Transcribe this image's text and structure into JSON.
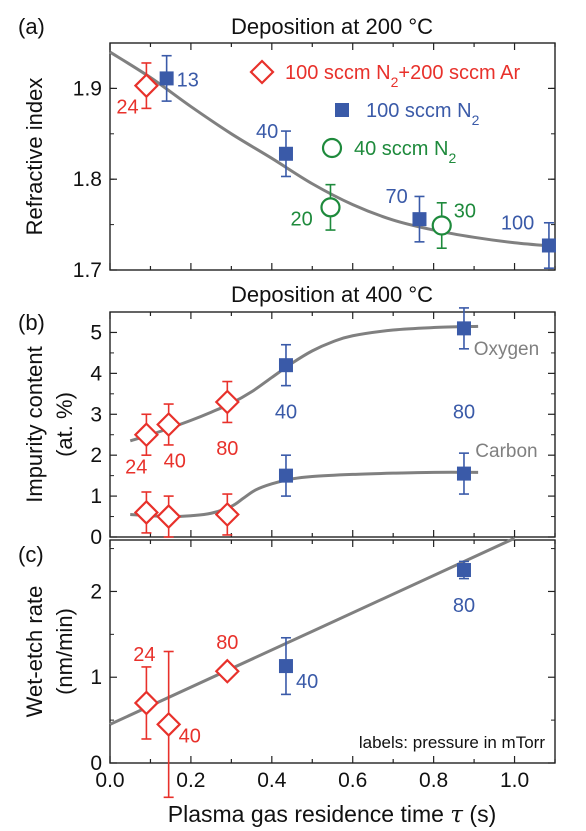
{
  "colors": {
    "red": "#e8312b",
    "blue": "#3a5aa8",
    "green": "#1e8a3c",
    "fit": "#808080",
    "axis": "#222222"
  },
  "chart_data": [
    {
      "panel": "(a)",
      "type": "scatter",
      "title": "Deposition at 200 °C",
      "xlabel": "",
      "ylabel": "Refractive index",
      "xlim": [
        0.0,
        1.1
      ],
      "ylim": [
        1.7,
        1.95
      ],
      "yticks": [
        1.7,
        1.8,
        1.9
      ],
      "series": [
        {
          "name": "100 sccm N2+200 sccm Ar",
          "marker": "diamond-open",
          "color": "red",
          "points": [
            {
              "x": 0.09,
              "y": 1.903,
              "err": 0.025,
              "label": "24"
            }
          ]
        },
        {
          "name": "100 sccm N2",
          "marker": "square-filled",
          "color": "blue",
          "points": [
            {
              "x": 0.14,
              "y": 1.911,
              "err": 0.025,
              "label": "13"
            },
            {
              "x": 0.435,
              "y": 1.828,
              "err": 0.025,
              "label": "40"
            },
            {
              "x": 0.765,
              "y": 1.756,
              "err": 0.025,
              "label": "70"
            },
            {
              "x": 1.085,
              "y": 1.727,
              "err": 0.025,
              "label": "100"
            }
          ]
        },
        {
          "name": "40 sccm N2",
          "marker": "circle-open",
          "color": "green",
          "points": [
            {
              "x": 0.545,
              "y": 1.769,
              "err": 0.025,
              "label": "20"
            },
            {
              "x": 0.82,
              "y": 1.749,
              "err": 0.025,
              "label": "30"
            }
          ]
        }
      ],
      "legend": {
        "placement": "top-right",
        "entries": [
          {
            "text": "100 sccm N",
            "sub": "2",
            "tail": "+200 sccm Ar",
            "color": "red",
            "marker": "diamond-open"
          },
          {
            "text": "100 sccm N",
            "sub": "2",
            "tail": "",
            "color": "blue",
            "marker": "square-filled"
          },
          {
            "text": "40 sccm N",
            "sub": "2",
            "tail": "",
            "color": "green",
            "marker": "circle-open"
          }
        ]
      },
      "fit_curve": {
        "x": [
          0.0,
          0.1,
          0.2,
          0.3,
          0.4,
          0.5,
          0.6,
          0.7,
          0.8,
          0.9,
          1.0,
          1.1
        ],
        "y": [
          1.94,
          1.912,
          1.88,
          1.85,
          1.823,
          1.795,
          1.772,
          1.755,
          1.744,
          1.736,
          1.73,
          1.726
        ]
      }
    },
    {
      "panel": "(b)",
      "type": "scatter",
      "title": "Deposition at 400 °C",
      "xlabel": "",
      "ylabel": "Impurity content",
      "ylabel2": "(at. %)",
      "xlim": [
        0.0,
        1.1
      ],
      "ylim": [
        0,
        5.5
      ],
      "yticks": [
        0,
        1,
        2,
        3,
        4,
        5
      ],
      "series": [
        {
          "name": "Oxygen",
          "points": [
            {
              "x": 0.09,
              "y": 2.5,
              "err": 0.5,
              "marker": "diamond-open",
              "color": "red"
            },
            {
              "x": 0.145,
              "y": 2.75,
              "err": 0.5,
              "marker": "diamond-open",
              "color": "red"
            },
            {
              "x": 0.29,
              "y": 3.3,
              "err": 0.5,
              "marker": "diamond-open",
              "color": "red"
            },
            {
              "x": 0.435,
              "y": 4.2,
              "err": 0.5,
              "marker": "square-filled",
              "color": "blue"
            },
            {
              "x": 0.875,
              "y": 5.1,
              "err": 0.5,
              "marker": "square-filled",
              "color": "blue"
            }
          ]
        },
        {
          "name": "Carbon",
          "points": [
            {
              "x": 0.09,
              "y": 0.6,
              "err": 0.5,
              "marker": "diamond-open",
              "color": "red"
            },
            {
              "x": 0.145,
              "y": 0.5,
              "err": 0.5,
              "marker": "diamond-open",
              "color": "red"
            },
            {
              "x": 0.29,
              "y": 0.55,
              "err": 0.5,
              "marker": "diamond-open",
              "color": "red"
            },
            {
              "x": 0.435,
              "y": 1.5,
              "err": 0.5,
              "marker": "square-filled",
              "color": "blue"
            },
            {
              "x": 0.875,
              "y": 1.55,
              "err": 0.5,
              "marker": "square-filled",
              "color": "blue"
            }
          ]
        }
      ],
      "curve_labels": [
        {
          "text": "Oxygen",
          "x": 0.98,
          "y": 4.45
        },
        {
          "text": "Carbon",
          "x": 0.98,
          "y": 1.95
        }
      ],
      "pressure_labels": [
        {
          "text": "24",
          "x": 0.065,
          "y": 1.55,
          "color": "red"
        },
        {
          "text": "40",
          "x": 0.16,
          "y": 1.7,
          "color": "red"
        },
        {
          "text": "80",
          "x": 0.29,
          "y": 2.0,
          "color": "red"
        },
        {
          "text": "40",
          "x": 0.435,
          "y": 2.9,
          "color": "blue"
        },
        {
          "text": "80",
          "x": 0.875,
          "y": 2.9,
          "color": "blue"
        }
      ],
      "fit_curves": [
        {
          "name": "Oxygen",
          "x": [
            0.05,
            0.1,
            0.15,
            0.2,
            0.25,
            0.3,
            0.35,
            0.4,
            0.45,
            0.5,
            0.55,
            0.6,
            0.7,
            0.8,
            0.91
          ],
          "y": [
            2.35,
            2.5,
            2.67,
            2.85,
            3.05,
            3.27,
            3.55,
            3.9,
            4.25,
            4.55,
            4.77,
            4.92,
            5.06,
            5.12,
            5.15
          ]
        },
        {
          "name": "Carbon",
          "x": [
            0.05,
            0.1,
            0.15,
            0.2,
            0.25,
            0.3,
            0.33,
            0.36,
            0.4,
            0.45,
            0.5,
            0.6,
            0.7,
            0.8,
            0.91
          ],
          "y": [
            0.55,
            0.52,
            0.5,
            0.52,
            0.58,
            0.75,
            0.95,
            1.15,
            1.3,
            1.42,
            1.48,
            1.53,
            1.56,
            1.58,
            1.58
          ]
        }
      ]
    },
    {
      "panel": "(c)",
      "type": "scatter",
      "title": "",
      "xlabel": "Plasma gas residence time",
      "xlabel_symbol": "τ",
      "xlabel_unit": " (s)",
      "ylabel": "Wet-etch rate",
      "ylabel2": "(nm/min)",
      "xlim": [
        0.0,
        1.1
      ],
      "ylim": [
        0,
        2.6
      ],
      "yticks": [
        0,
        1,
        2
      ],
      "xticks": [
        0.0,
        0.2,
        0.4,
        0.6,
        0.8,
        1.0
      ],
      "xtick_labels": [
        "0.0",
        "0.2",
        "0.4",
        "0.6",
        "0.8",
        "1.0"
      ],
      "series": [
        {
          "name": "",
          "points": [
            {
              "x": 0.09,
              "y": 0.7,
              "err": 0.42,
              "label": "24",
              "marker": "diamond-open",
              "color": "red"
            },
            {
              "x": 0.145,
              "y": 0.45,
              "err": 0.85,
              "label": "40",
              "marker": "diamond-open",
              "color": "red"
            },
            {
              "x": 0.29,
              "y": 1.07,
              "err": 0.05,
              "label": "80",
              "marker": "diamond-open",
              "color": "red"
            },
            {
              "x": 0.435,
              "y": 1.13,
              "err": 0.33,
              "label": "40",
              "marker": "square-filled",
              "color": "blue"
            },
            {
              "x": 0.875,
              "y": 2.25,
              "err": 0.1,
              "label": "80",
              "marker": "square-filled",
              "color": "blue"
            }
          ]
        }
      ],
      "fit_curve": {
        "x": [
          0.0,
          1.0
        ],
        "y": [
          0.45,
          2.62
        ]
      },
      "annotation": "labels: pressure in mTorr"
    }
  ]
}
